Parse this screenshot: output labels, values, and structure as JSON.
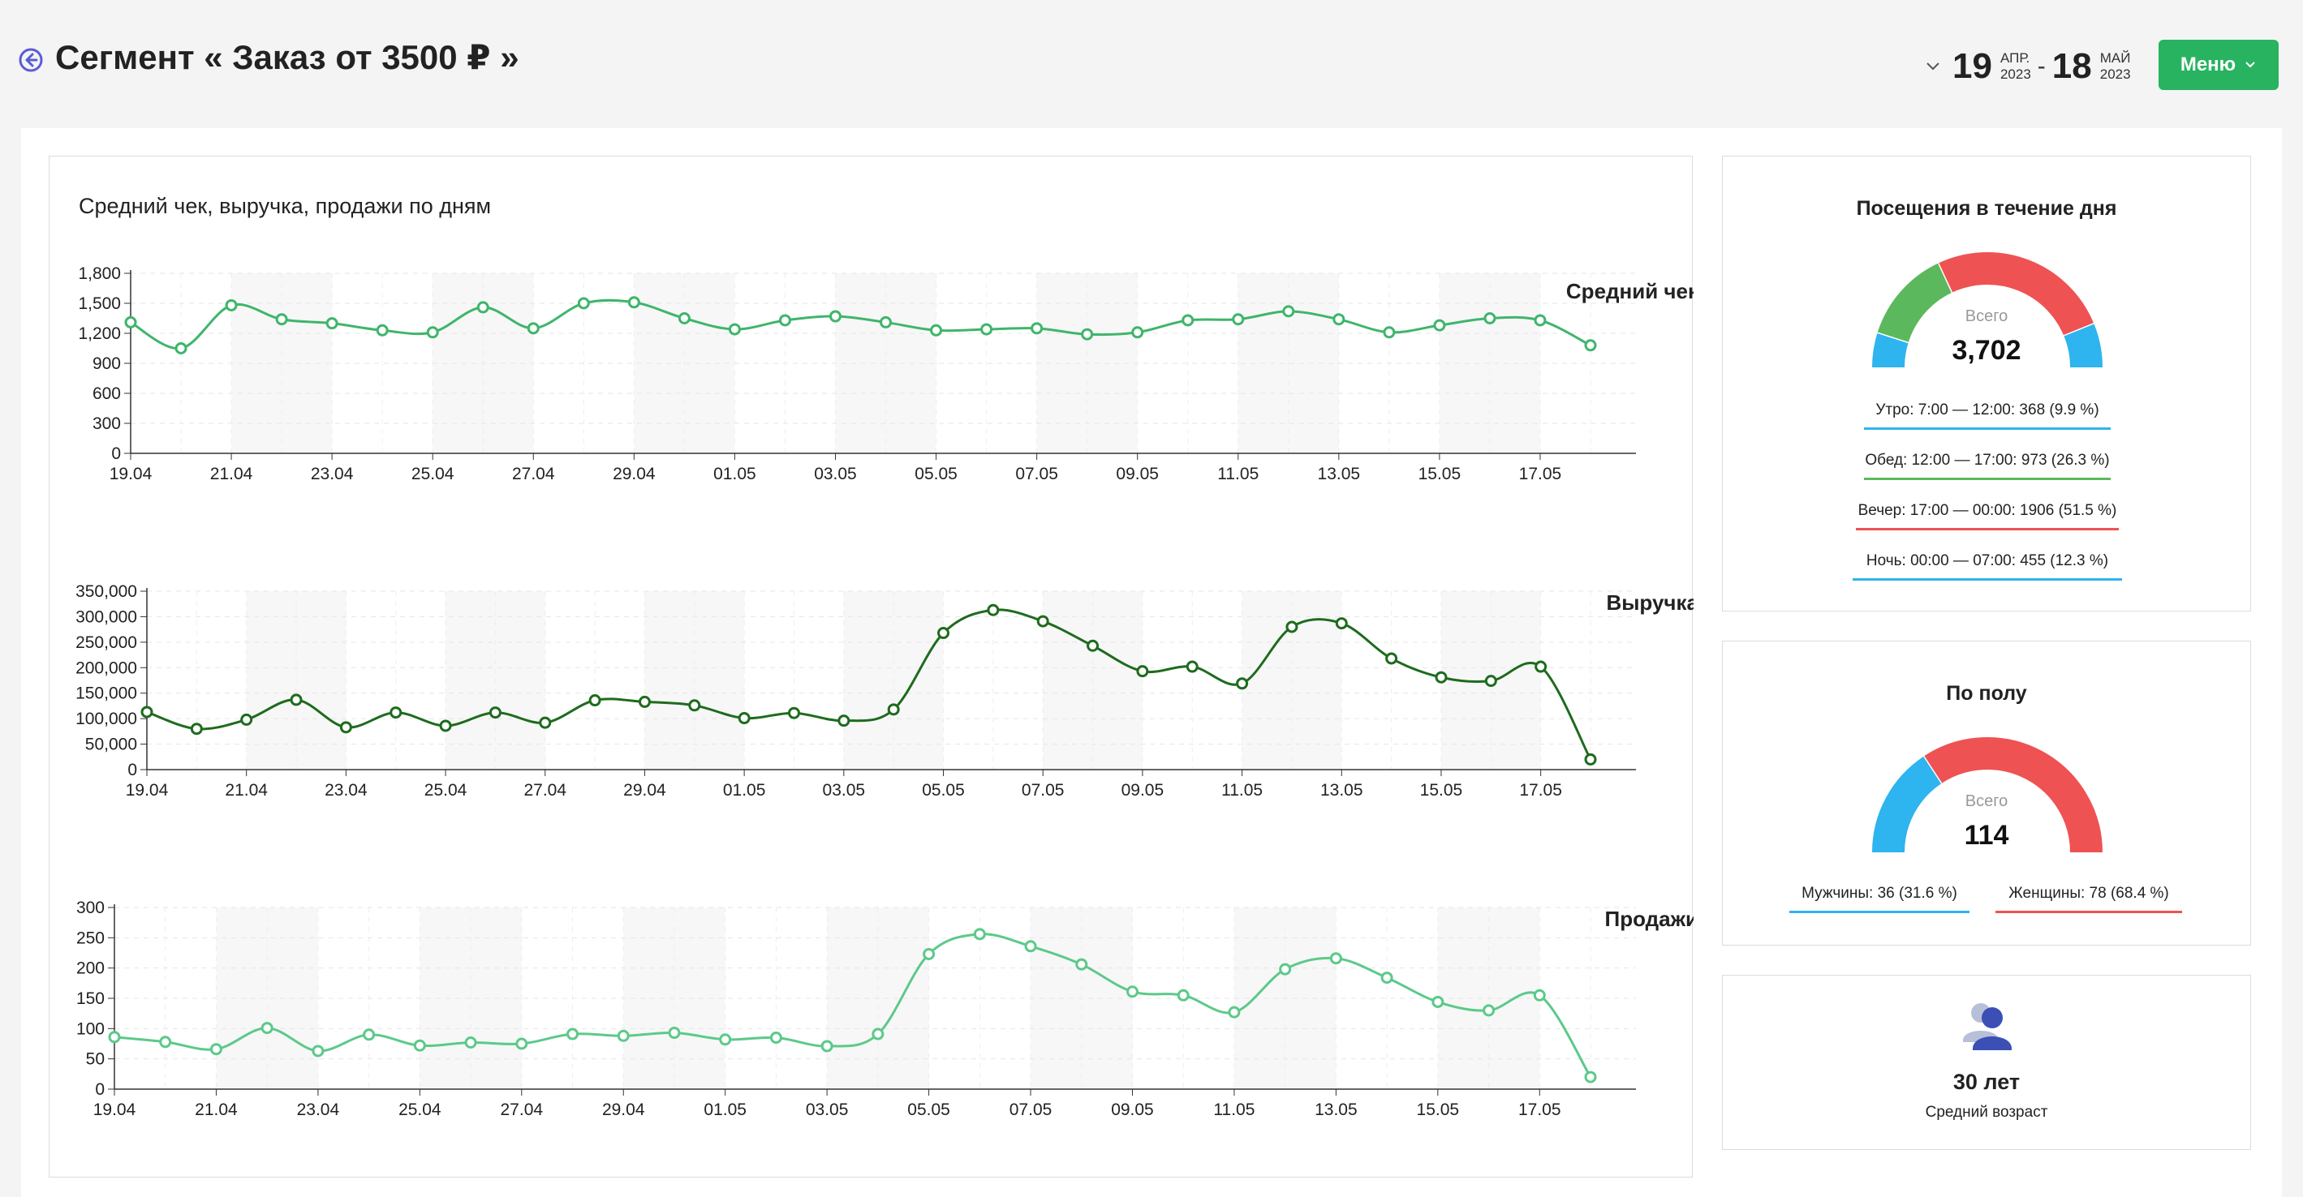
{
  "header": {
    "title": "Сегмент « Заказ от 3500 ₽ »",
    "date_from": {
      "day": "19",
      "month": "АПР.",
      "year": "2023"
    },
    "date_dash": "-",
    "date_to": {
      "day": "18",
      "month": "МАЙ",
      "year": "2023"
    },
    "menu_label": "Меню"
  },
  "chart_panel": {
    "title": "Средний чек, выручка, продажи по дням"
  },
  "chart_data": [
    {
      "type": "line",
      "title": "Средний чек",
      "color": "#3fb56b",
      "x_tick_labels": [
        "19.04",
        "21.04",
        "23.04",
        "25.04",
        "27.04",
        "29.04",
        "01.05",
        "03.05",
        "05.05",
        "07.05",
        "09.05",
        "11.05",
        "13.05",
        "15.05",
        "17.05"
      ],
      "y_tick_labels": [
        "0",
        "300",
        "600",
        "900",
        "1,200",
        "1,500",
        "1,800"
      ],
      "ylim": [
        0,
        1800
      ],
      "x": [
        "19.04",
        "20.04",
        "21.04",
        "22.04",
        "23.04",
        "24.04",
        "25.04",
        "26.04",
        "27.04",
        "28.04",
        "29.04",
        "30.04",
        "01.05",
        "02.05",
        "03.05",
        "04.05",
        "05.05",
        "06.05",
        "07.05",
        "08.05",
        "09.05",
        "10.05",
        "11.05",
        "12.05",
        "13.05",
        "14.05",
        "15.05",
        "16.05",
        "17.05",
        "18.05"
      ],
      "values": [
        1310,
        1050,
        1480,
        1340,
        1300,
        1230,
        1210,
        1460,
        1250,
        1500,
        1510,
        1350,
        1240,
        1330,
        1370,
        1310,
        1230,
        1240,
        1250,
        1190,
        1210,
        1330,
        1340,
        1420,
        1340,
        1210,
        1280,
        1350,
        1330,
        1080
      ]
    },
    {
      "type": "line",
      "title": "Выручка",
      "color": "#1e6b1e",
      "x_tick_labels": [
        "19.04",
        "21.04",
        "23.04",
        "25.04",
        "27.04",
        "29.04",
        "01.05",
        "03.05",
        "05.05",
        "07.05",
        "09.05",
        "11.05",
        "13.05",
        "15.05",
        "17.05"
      ],
      "y_tick_labels": [
        "0",
        "50,000",
        "100,000",
        "150,000",
        "200,000",
        "250,000",
        "300,000",
        "350,000"
      ],
      "ylim": [
        0,
        350000
      ],
      "x": [
        "19.04",
        "20.04",
        "21.04",
        "22.04",
        "23.04",
        "24.04",
        "25.04",
        "26.04",
        "27.04",
        "28.04",
        "29.04",
        "30.04",
        "01.05",
        "02.05",
        "03.05",
        "04.05",
        "05.05",
        "06.05",
        "07.05",
        "08.05",
        "09.05",
        "10.05",
        "11.05",
        "12.05",
        "13.05",
        "14.05",
        "15.05",
        "16.05",
        "17.05",
        "18.05"
      ],
      "values": [
        113000,
        80000,
        98000,
        137000,
        83000,
        112000,
        86000,
        112000,
        92000,
        136000,
        133000,
        126000,
        101000,
        111000,
        96000,
        118000,
        268000,
        313000,
        291000,
        243000,
        193000,
        202000,
        169000,
        280000,
        287000,
        218000,
        181000,
        174000,
        202000,
        20000
      ]
    },
    {
      "type": "line",
      "title": "Продажи",
      "color": "#5cc98a",
      "x_tick_labels": [
        "19.04",
        "21.04",
        "23.04",
        "25.04",
        "27.04",
        "29.04",
        "01.05",
        "03.05",
        "05.05",
        "07.05",
        "09.05",
        "11.05",
        "13.05",
        "15.05",
        "17.05"
      ],
      "y_tick_labels": [
        "0",
        "50",
        "100",
        "150",
        "200",
        "250",
        "300"
      ],
      "ylim": [
        0,
        300
      ],
      "x": [
        "19.04",
        "20.04",
        "21.04",
        "22.04",
        "23.04",
        "24.04",
        "25.04",
        "26.04",
        "27.04",
        "28.04",
        "29.04",
        "30.04",
        "01.05",
        "02.05",
        "03.05",
        "04.05",
        "05.05",
        "06.05",
        "07.05",
        "08.05",
        "09.05",
        "10.05",
        "11.05",
        "12.05",
        "13.05",
        "14.05",
        "15.05",
        "16.05",
        "17.05",
        "18.05"
      ],
      "values": [
        86,
        78,
        66,
        101,
        63,
        90,
        72,
        77,
        75,
        91,
        88,
        93,
        82,
        85,
        71,
        91,
        223,
        256,
        236,
        206,
        161,
        155,
        127,
        198,
        216,
        184,
        144,
        130,
        155,
        20
      ]
    }
  ],
  "visits": {
    "title": "Посещения в течение дня",
    "total_label": "Всего",
    "total": "3,702",
    "segments": [
      {
        "label": "Утро: 7:00 — 12:00: 368 (9.9 %)",
        "share": 9.9,
        "color": "#2eb4ee"
      },
      {
        "label": "Обед: 12:00 — 17:00: 973 (26.3 %)",
        "share": 26.3,
        "color": "#5cb85c"
      },
      {
        "label": "Вечер: 17:00 — 00:00: 1906 (51.5 %)",
        "share": 51.5,
        "color": "#ee5253"
      },
      {
        "label": "Ночь: 00:00 — 07:00: 455 (12.3 %)",
        "share": 12.3,
        "color": "#2eb4ee"
      }
    ]
  },
  "gender": {
    "title": "По полу",
    "total_label": "Всего",
    "total": "114",
    "segments": [
      {
        "label": "Мужчины: 36 (31.6 %)",
        "share": 31.6,
        "color": "#2eb4ee"
      },
      {
        "label": "Женщины: 78 (68.4 %)",
        "share": 68.4,
        "color": "#ee5253"
      }
    ]
  },
  "age": {
    "value": "30 лет",
    "label": "Средний возраст"
  }
}
